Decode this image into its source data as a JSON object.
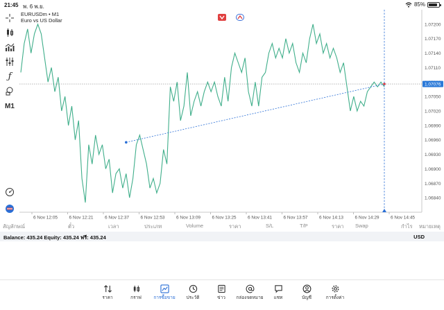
{
  "status_bar": {
    "time": "21:45",
    "date": "พ. 6 พ.ย.",
    "battery": "85%",
    "battery_level": 0.85
  },
  "toolbar": {
    "items": [
      {
        "icon": "crosshair-icon"
      },
      {
        "icon": "candles-icon"
      },
      {
        "icon": "indicators-icon"
      },
      {
        "icon": "objects-icon"
      },
      {
        "icon": "function-icon",
        "glyph": "ƒ"
      },
      {
        "icon": "shapes-icon"
      },
      {
        "icon": "timeframe",
        "label": "M1"
      },
      {
        "icon": "speedometer-icon"
      },
      {
        "icon": "trade-logo-icon"
      }
    ]
  },
  "chart": {
    "symbol": "EURUSDm • M1",
    "description": "Euro vs US Dollar",
    "current_price_label": "1.07076",
    "colors": {
      "line": "#3fae8a",
      "bid_line": "#8a8a8a",
      "price_badge": "#2a79d8",
      "trend": "#2a6fd6",
      "cursor": "#2a6fd6"
    }
  },
  "chart_data": {
    "type": "line",
    "ylim": [
      1.0681,
      1.0723
    ],
    "y_ticks": [
      "1.07200",
      "1.07170",
      "1.07140",
      "1.07110",
      "1.07080",
      "1.07050",
      "1.07020",
      "1.06990",
      "1.06960",
      "1.06930",
      "1.06900",
      "1.06870",
      "1.06840"
    ],
    "x_ticks": [
      "6 Nov 12:05",
      "6 Nov 12:21",
      "6 Nov 12:37",
      "6 Nov 12:53",
      "6 Nov 13:09",
      "6 Nov 13:25",
      "6 Nov 13:41",
      "6 Nov 13:57",
      "6 Nov 14:13",
      "6 Nov 14:29",
      "6 Nov 14:45"
    ],
    "series": [
      {
        "values": [
          1.071,
          1.0716,
          1.0719,
          1.0714,
          1.0718,
          1.072,
          1.0718,
          1.0713,
          1.0708,
          1.0711,
          1.0706,
          1.0709,
          1.0702,
          1.0705,
          1.0699,
          1.0703,
          1.0696,
          1.07,
          1.0688,
          1.0683,
          1.0695,
          1.0691,
          1.0697,
          1.0693,
          1.0695,
          1.069,
          1.0692,
          1.0685,
          1.0689,
          1.069,
          1.0686,
          1.0689,
          1.0684,
          1.0688,
          1.0695,
          1.0697,
          1.0694,
          1.0691,
          1.0686,
          1.0688,
          1.0685,
          1.0687,
          1.0694,
          1.0691,
          1.0707,
          1.0704,
          1.0708,
          1.07,
          1.0703,
          1.071,
          1.0701,
          1.0704,
          1.0706,
          1.0703,
          1.0706,
          1.0708,
          1.0706,
          1.0708,
          1.0705,
          1.0703,
          1.0709,
          1.0704,
          1.0711,
          1.0714,
          1.0712,
          1.071,
          1.0713,
          1.0706,
          1.0703,
          1.0708,
          1.0703,
          1.0709,
          1.071,
          1.0714,
          1.0716,
          1.0713,
          1.0715,
          1.0713,
          1.0717,
          1.0714,
          1.0716,
          1.0712,
          1.071,
          1.0714,
          1.0712,
          1.0717,
          1.072,
          1.0716,
          1.0718,
          1.0714,
          1.0716,
          1.0713,
          1.0715,
          1.0713,
          1.071,
          1.0712,
          1.0707,
          1.0702,
          1.0705,
          1.0702,
          1.0704,
          1.0703,
          1.0706,
          1.0707,
          1.0708,
          1.0707,
          1.0708,
          1.0707
        ]
      }
    ],
    "bid_price": 1.07076,
    "trendline": {
      "from": {
        "x_index": 31,
        "y": 1.06955
      },
      "to": {
        "x_index": 107,
        "y": 1.07076
      }
    },
    "cursor_x_index": 107,
    "grid": false
  },
  "table_header": {
    "columns": [
      "สัญลักษณ์",
      "ตั๋ว",
      "เวลา",
      "ประเภท",
      "Volume",
      "ราคา",
      "S/L",
      "T/P",
      "ราคา",
      "Swap",
      "กำไร",
      "หมายเหตุ"
    ]
  },
  "balance_bar": {
    "text": "Balance: 435.24 Equity: 435.24 ฟรี: 435.24",
    "currency": "USD"
  },
  "tabs": [
    {
      "label": "ราคา",
      "icon": "quotes-arrows-icon"
    },
    {
      "label": "กราฟ",
      "icon": "candles-chart-icon"
    },
    {
      "label": "การซื้อขาย",
      "icon": "trade-chart-icon",
      "active": true
    },
    {
      "label": "ประวัติ",
      "icon": "history-clock-icon"
    },
    {
      "label": "ข่าว",
      "icon": "news-book-icon"
    },
    {
      "label": "กล่องจดหมาย",
      "icon": "mailbox-at-icon"
    },
    {
      "label": "แชท",
      "icon": "chat-bubble-icon"
    },
    {
      "label": "บัญชี",
      "icon": "account-user-icon"
    },
    {
      "label": "การตั้งค่า",
      "icon": "settings-gear-icon"
    }
  ]
}
